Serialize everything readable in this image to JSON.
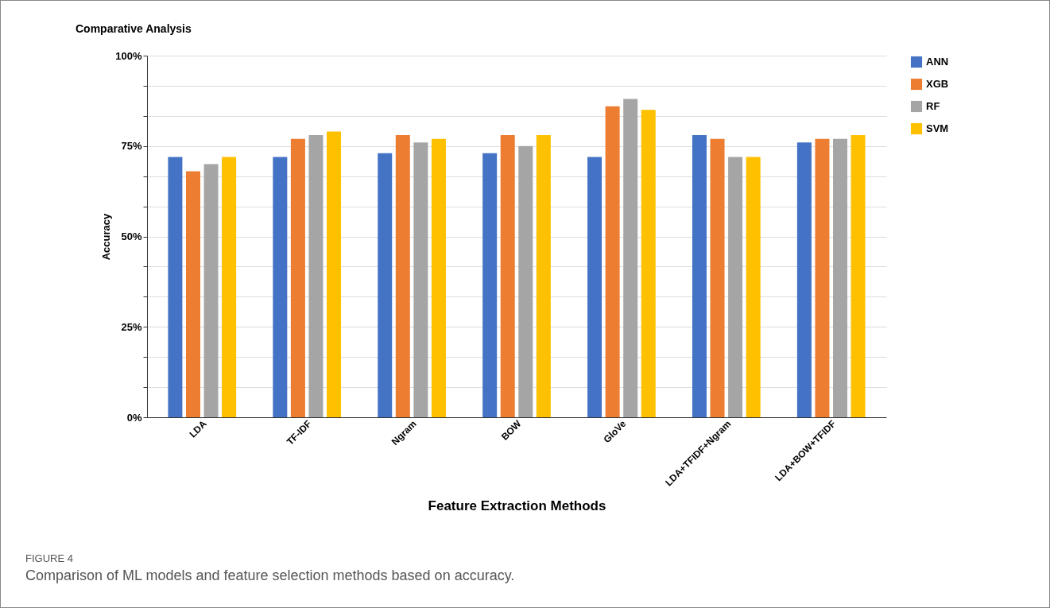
{
  "chart_data": {
    "type": "bar",
    "title": "Comparative Analysis",
    "xlabel": "Feature Extraction Methods",
    "ylabel": "Accuracy",
    "categories": [
      "LDA",
      "TF-IDF",
      "Ngram",
      "BOW",
      "GloVe",
      "LDA+TFIDF+Ngram",
      "LDA+BOW+TFIDF"
    ],
    "series": [
      {
        "name": "ANN",
        "color": "#4472c4",
        "values": [
          72,
          72,
          73,
          73,
          72,
          78,
          76
        ]
      },
      {
        "name": "XGB",
        "color": "#ed7d31",
        "values": [
          68,
          77,
          78,
          78,
          86,
          77,
          77
        ]
      },
      {
        "name": "RF",
        "color": "#a5a5a5",
        "values": [
          70,
          78,
          76,
          75,
          88,
          72,
          77
        ]
      },
      {
        "name": "SVM",
        "color": "#ffc000",
        "values": [
          72,
          79,
          77,
          78,
          85,
          72,
          78
        ]
      }
    ],
    "ylim": [
      0,
      100
    ],
    "yticks": [
      {
        "value": 0,
        "label": "0%"
      },
      {
        "value": 8.33,
        "label": null
      },
      {
        "value": 16.67,
        "label": null
      },
      {
        "value": 25,
        "label": "25%"
      },
      {
        "value": 33.33,
        "label": null
      },
      {
        "value": 41.67,
        "label": null
      },
      {
        "value": 50,
        "label": "50%"
      },
      {
        "value": 58.33,
        "label": null
      },
      {
        "value": 66.67,
        "label": null
      },
      {
        "value": 75,
        "label": "75%"
      },
      {
        "value": 83.33,
        "label": null
      },
      {
        "value": 91.67,
        "label": null
      },
      {
        "value": 100,
        "label": "100%"
      }
    ],
    "grid": "y",
    "legend": "top right",
    "annotations": [
      "FIGURE 4",
      "Comparison of ML models and feature selection methods based on accuracy."
    ]
  }
}
